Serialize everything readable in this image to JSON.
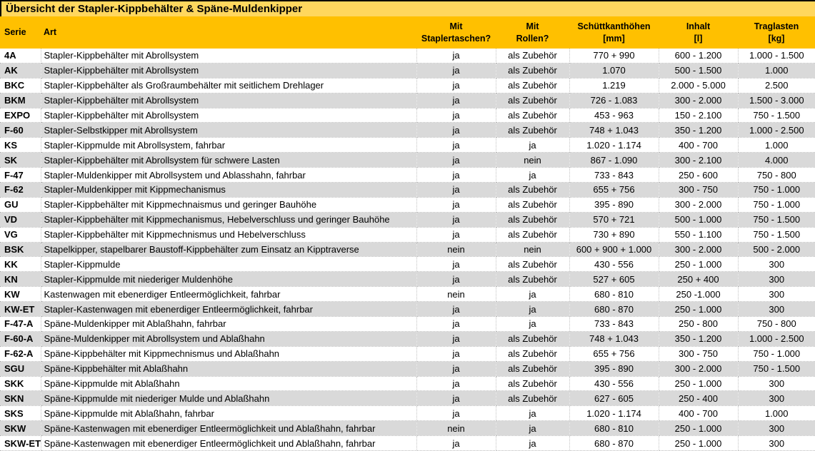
{
  "title": "Übersicht der Stapler-Kippbehälter & Späne-Muldenkipper",
  "colors": {
    "title_bg": "#FFD75E",
    "header_bg": "#FFC000",
    "alt_row_bg": "#D9D9D9",
    "text": "#000000"
  },
  "table": {
    "column_keys": [
      "serie",
      "art",
      "taschen",
      "rollen",
      "hoehen",
      "inhalt",
      "traglast"
    ],
    "columns": [
      {
        "line1": "Serie",
        "line2": ""
      },
      {
        "line1": "Art",
        "line2": ""
      },
      {
        "line1": "Mit",
        "line2": "Staplertaschen?"
      },
      {
        "line1": "Mit",
        "line2": "Rollen?"
      },
      {
        "line1": "Schüttkanthöhen",
        "line2": "[mm]"
      },
      {
        "line1": "Inhalt",
        "line2": "[l]"
      },
      {
        "line1": "Traglasten",
        "line2": "[kg]"
      }
    ],
    "rows": [
      {
        "serie": "4A",
        "art": "Stapler-Kippbehälter mit Abrollsystem",
        "taschen": "ja",
        "rollen": "als Zubehör",
        "hoehen": "770 + 990",
        "inhalt": "600 - 1.200",
        "traglast": "1.000 - 1.500"
      },
      {
        "serie": "AK",
        "art": "Stapler-Kippbehälter mit Abrollsystem",
        "taschen": "ja",
        "rollen": "als Zubehör",
        "hoehen": "1.070",
        "inhalt": "500 - 1.500",
        "traglast": "1.000"
      },
      {
        "serie": "BKC",
        "art": "Stapler-Kippbehälter als Großraumbehälter mit seitlichem Drehlager",
        "taschen": "ja",
        "rollen": "als Zubehör",
        "hoehen": "1.219",
        "inhalt": "2.000 - 5.000",
        "traglast": "2.500"
      },
      {
        "serie": "BKM",
        "art": "Stapler-Kippbehälter mit Abrollsystem",
        "taschen": "ja",
        "rollen": "als Zubehör",
        "hoehen": "726 - 1.083",
        "inhalt": "300 - 2.000",
        "traglast": "1.500 - 3.000"
      },
      {
        "serie": "EXPO",
        "art": "Stapler-Kippbehälter mit Abrollsystem",
        "taschen": "ja",
        "rollen": "als Zubehör",
        "hoehen": "453 - 963",
        "inhalt": "150 - 2.100",
        "traglast": "750 - 1.500"
      },
      {
        "serie": "F-60",
        "art": "Stapler-Selbstkipper mit Abrollsystem",
        "taschen": "ja",
        "rollen": "als Zubehör",
        "hoehen": "748 + 1.043",
        "inhalt": "350 - 1.200",
        "traglast": "1.000 - 2.500"
      },
      {
        "serie": "KS",
        "art": "Stapler-Kippmulde mit Abrollsystem, fahrbar",
        "taschen": "ja",
        "rollen": "ja",
        "hoehen": "1.020 - 1.174",
        "inhalt": "400 - 700",
        "traglast": "1.000"
      },
      {
        "serie": "SK",
        "art": "Stapler-Kippbehälter mit Abrollsystem für schwere Lasten",
        "taschen": "ja",
        "rollen": "nein",
        "hoehen": "867 - 1.090",
        "inhalt": "300 - 2.100",
        "traglast": "4.000"
      },
      {
        "serie": "F-47",
        "art": "Stapler-Muldenkipper mit Abrollsystem und Ablasshahn, fahrbar",
        "taschen": "ja",
        "rollen": "ja",
        "hoehen": "733 - 843",
        "inhalt": "250 - 600",
        "traglast": "750 - 800"
      },
      {
        "serie": "F-62",
        "art": "Stapler-Muldenkipper mit Kippmechanismus",
        "taschen": "ja",
        "rollen": "als Zubehör",
        "hoehen": "655 + 756",
        "inhalt": "300 - 750",
        "traglast": "750 - 1.000"
      },
      {
        "serie": "GU",
        "art": "Stapler-Kippbehälter mit Kippmechnaismus und geringer Bauhöhe",
        "taschen": "ja",
        "rollen": "als Zubehör",
        "hoehen": "395 - 890",
        "inhalt": "300 - 2.000",
        "traglast": "750 - 1.000"
      },
      {
        "serie": "VD",
        "art": "Stapler-Kippbehälter mit Kippmechanismus, Hebelverschluss und geringer Bauhöhe",
        "taschen": "ja",
        "rollen": "als Zubehör",
        "hoehen": "570 + 721",
        "inhalt": "500 - 1.000",
        "traglast": "750 - 1.500"
      },
      {
        "serie": "VG",
        "art": "Stapler-Kippbehälter mit Kippmechnismus und Hebelverschluss",
        "taschen": "ja",
        "rollen": "als Zubehör",
        "hoehen": "730 + 890",
        "inhalt": "550 - 1.100",
        "traglast": "750 - 1.500"
      },
      {
        "serie": "BSK",
        "art": "Stapelkipper, stapelbarer Baustoff-Kippbehälter zum Einsatz an Kipptraverse",
        "taschen": "nein",
        "rollen": "nein",
        "hoehen": "600 + 900 + 1.000",
        "inhalt": "300 - 2.000",
        "traglast": "500 - 2.000"
      },
      {
        "serie": "KK",
        "art": "Stapler-Kippmulde",
        "taschen": "ja",
        "rollen": "als Zubehör",
        "hoehen": "430 - 556",
        "inhalt": "250 - 1.000",
        "traglast": "300"
      },
      {
        "serie": "KN",
        "art": "Stapler-Kippmulde mit niederiger Muldenhöhe",
        "taschen": "ja",
        "rollen": "als Zubehör",
        "hoehen": "527 + 605",
        "inhalt": "250 + 400",
        "traglast": "300"
      },
      {
        "serie": "KW",
        "art": "Kastenwagen mit ebenerdiger Entleermöglichkeit, fahrbar",
        "taschen": "nein",
        "rollen": "ja",
        "hoehen": "680 - 810",
        "inhalt": "250 -1.000",
        "traglast": "300"
      },
      {
        "serie": "KW-ET",
        "art": "Stapler-Kastenwagen mit ebenerdiger Entleermöglichkeit, fahrbar",
        "taschen": "ja",
        "rollen": "ja",
        "hoehen": "680 - 870",
        "inhalt": "250 - 1.000",
        "traglast": "300"
      },
      {
        "serie": "F-47-A",
        "art": "Späne-Muldenkipper mit Ablaßhahn, fahrbar",
        "taschen": "ja",
        "rollen": "ja",
        "hoehen": "733 - 843",
        "inhalt": "250 - 800",
        "traglast": "750 - 800"
      },
      {
        "serie": "F-60-A",
        "art": "Späne-Muldenkipper mit Abrollsystem und Ablaßhahn",
        "taschen": "ja",
        "rollen": "als Zubehör",
        "hoehen": "748 + 1.043",
        "inhalt": "350 - 1.200",
        "traglast": "1.000 - 2.500"
      },
      {
        "serie": "F-62-A",
        "art": "Späne-Kippbehälter mit Kippmechnismus und Ablaßhahn",
        "taschen": "ja",
        "rollen": "als Zubehör",
        "hoehen": "655 + 756",
        "inhalt": "300 - 750",
        "traglast": "750 - 1.000"
      },
      {
        "serie": "SGU",
        "art": "Späne-Kippbehälter mit Ablaßhahn",
        "taschen": "ja",
        "rollen": "als Zubehör",
        "hoehen": "395 - 890",
        "inhalt": "300 - 2.000",
        "traglast": "750 - 1.500"
      },
      {
        "serie": "SKK",
        "art": "Späne-Kippmulde mit Ablaßhahn",
        "taschen": "ja",
        "rollen": "als Zubehör",
        "hoehen": "430 - 556",
        "inhalt": "250 - 1.000",
        "traglast": "300"
      },
      {
        "serie": "SKN",
        "art": "Späne-Kippmulde mit niederiger Mulde und Ablaßhahn",
        "taschen": "ja",
        "rollen": "als Zubehör",
        "hoehen": "627 - 605",
        "inhalt": "250 - 400",
        "traglast": "300"
      },
      {
        "serie": "SKS",
        "art": "Späne-Kippmulde mit Ablaßhahn, fahrbar",
        "taschen": "ja",
        "rollen": "ja",
        "hoehen": "1.020 - 1.174",
        "inhalt": "400 - 700",
        "traglast": "1.000"
      },
      {
        "serie": "SKW",
        "art": "Späne-Kastenwagen mit ebenerdiger Entleermöglichkeit und Ablaßhahn, fahrbar",
        "taschen": "nein",
        "rollen": "ja",
        "hoehen": "680 - 810",
        "inhalt": "250 - 1.000",
        "traglast": "300"
      },
      {
        "serie": "SKW-ET",
        "art": "Späne-Kastenwagen mit ebenerdiger Entleermöglichkeit und Ablaßhahn, fahrbar",
        "taschen": "ja",
        "rollen": "ja",
        "hoehen": "680 - 870",
        "inhalt": "250 - 1.000",
        "traglast": "300"
      }
    ]
  }
}
